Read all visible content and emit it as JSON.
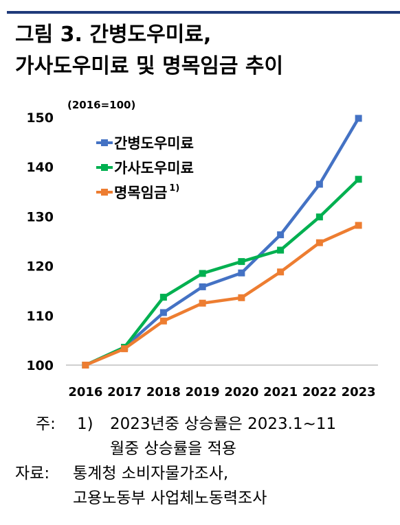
{
  "title": {
    "line1": "그림 3. 간병도우미료,",
    "line2": "가사도우미료 및 명목임금 추이"
  },
  "chart_data": {
    "type": "line",
    "unit_label": "(2016=100)",
    "categories": [
      "2016",
      "2017",
      "2018",
      "2019",
      "2020",
      "2021",
      "2022",
      "2023"
    ],
    "ylim": [
      100,
      150
    ],
    "yticks": [
      100,
      110,
      120,
      130,
      140,
      150
    ],
    "grid": false,
    "legend_position": "top-left",
    "series": [
      {
        "name": "간병도우미료",
        "color": "#4472c4",
        "values": [
          100,
          103.6,
          110.6,
          115.8,
          118.6,
          126.3,
          136.5,
          149.8
        ]
      },
      {
        "name": "가사도우미료",
        "color": "#00b050",
        "values": [
          100,
          103.6,
          113.7,
          118.5,
          120.9,
          123.2,
          129.9,
          137.5
        ]
      },
      {
        "name": "명목임금",
        "name_sup": "1)",
        "color": "#ed7d31",
        "values": [
          100,
          103.3,
          108.9,
          112.5,
          113.6,
          118.8,
          124.7,
          128.2
        ]
      }
    ]
  },
  "notes": {
    "note_prefix": "주:",
    "note_num": "1)",
    "note_text1": "2023년중   상승률은   2023.1~11",
    "note_text2": "월중  상승률을  적용",
    "source_prefix": "자료:",
    "source_text1": "통계청  소비자물가조사,",
    "source_text2": "고용노동부  사업체노동력조사"
  }
}
